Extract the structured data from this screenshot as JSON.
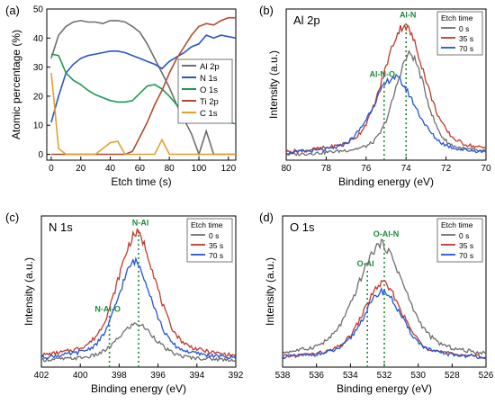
{
  "chart_data": [
    {
      "panel_label": "(a)",
      "type": "line",
      "xlabel": "Etch time (s)",
      "ylabel": "Atomic percentage (%)",
      "xlim": [
        -3,
        125
      ],
      "ylim": [
        -2,
        50
      ],
      "xticks": [
        0,
        20,
        40,
        60,
        80,
        100,
        120
      ],
      "yticks": [
        0,
        10,
        20,
        30,
        40,
        50
      ],
      "legend_position": "right-middle",
      "series": [
        {
          "name": "Al 2p",
          "color": "#6e6e6e",
          "x": [
            0,
            5,
            10,
            15,
            20,
            25,
            30,
            35,
            40,
            45,
            50,
            55,
            60,
            65,
            70,
            75,
            80,
            85,
            90,
            95,
            100,
            105,
            110,
            115,
            120,
            125
          ],
          "y": [
            33,
            41,
            44,
            45.5,
            46,
            45.5,
            45.5,
            45,
            46,
            46,
            45.5,
            44,
            42,
            38,
            33,
            28,
            23,
            17,
            12,
            7,
            0,
            8,
            0,
            0,
            0,
            0
          ]
        },
        {
          "name": "N 1s",
          "color": "#2a54c8",
          "x": [
            0,
            5,
            10,
            15,
            20,
            25,
            30,
            35,
            40,
            45,
            50,
            55,
            60,
            65,
            70,
            75,
            80,
            85,
            90,
            95,
            100,
            105,
            110,
            115,
            120,
            125
          ],
          "y": [
            11,
            20,
            28,
            31,
            33,
            34,
            34.5,
            35,
            35.5,
            35.5,
            35,
            34,
            33,
            32,
            31,
            29.5,
            32,
            33.5,
            35,
            37,
            38,
            41,
            40,
            41,
            40.5,
            40
          ]
        },
        {
          "name": "O 1s",
          "color": "#1a9a50",
          "x": [
            0,
            5,
            10,
            15,
            20,
            25,
            30,
            35,
            40,
            45,
            50,
            55,
            60,
            65,
            70,
            75,
            80,
            85,
            90,
            95,
            100,
            105,
            110,
            115,
            120,
            125
          ],
          "y": [
            34.5,
            34,
            28,
            25.5,
            24,
            22,
            20.5,
            19.5,
            18.5,
            18,
            18,
            18.5,
            21,
            23.5,
            24,
            22.5,
            20,
            17,
            16,
            15.5,
            14,
            13,
            12,
            11.5,
            11,
            10.5
          ]
        },
        {
          "name": "Ti 2p",
          "color": "#b44a2e",
          "x": [
            0,
            5,
            10,
            15,
            20,
            25,
            30,
            35,
            40,
            45,
            50,
            55,
            60,
            65,
            70,
            75,
            80,
            85,
            90,
            95,
            100,
            105,
            110,
            115,
            120,
            125
          ],
          "y": [
            0,
            0,
            0,
            0,
            0,
            0,
            0,
            0,
            0,
            0,
            0,
            1,
            6,
            11,
            17,
            22,
            28,
            33,
            37,
            41,
            44,
            45,
            44.5,
            46,
            47,
            47
          ]
        },
        {
          "name": "C 1s",
          "color": "#e0a030",
          "x": [
            0,
            2,
            5,
            10,
            15,
            20,
            30,
            40,
            45,
            50,
            60,
            70,
            75,
            80,
            90,
            100,
            110,
            120,
            125
          ],
          "y": [
            28,
            18,
            2,
            0,
            0,
            0,
            0,
            4,
            4.5,
            0,
            0,
            0,
            5,
            0,
            0,
            0,
            0,
            0,
            0
          ]
        }
      ]
    },
    {
      "panel_label": "(b)",
      "title": "Al 2p",
      "type": "line",
      "xlabel": "Binding energy (eV)",
      "ylabel": "Intensity (a.u.)",
      "x_reversed": true,
      "xlim": [
        80,
        70
      ],
      "ylim": [
        0,
        1.08
      ],
      "xticks": [
        80,
        78,
        76,
        74,
        72,
        70
      ],
      "legend_title": "Etch time",
      "legend_position": "top-right",
      "annotations": [
        {
          "text": "Al-N-O",
          "x": 75.1
        },
        {
          "text": "Al-N",
          "x": 74.0
        }
      ],
      "series": [
        {
          "name": "0 s",
          "color": "#6e6e6e",
          "center": 73.8,
          "width": 0.75,
          "amplitude": 0.75,
          "baseline": 0.03,
          "tail": 0.25
        },
        {
          "name": "35 s",
          "color": "#c0392b",
          "center": 74.1,
          "width": 1.0,
          "amplitude": 0.96,
          "baseline": 0.03,
          "tail": 0.25
        },
        {
          "name": "70 s",
          "color": "#2255d8",
          "center": 74.6,
          "width": 1.05,
          "amplitude": 0.58,
          "baseline": 0.03,
          "tail": 0.25
        }
      ]
    },
    {
      "panel_label": "(c)",
      "title": "N 1s",
      "type": "line",
      "xlabel": "Binding energy (eV)",
      "ylabel": "Intensity (a.u.)",
      "x_reversed": true,
      "xlim": [
        402,
        392
      ],
      "ylim": [
        0,
        1.08
      ],
      "xticks": [
        402,
        400,
        398,
        396,
        394,
        392
      ],
      "legend_title": "Etch time",
      "legend_position": "top-right",
      "annotations": [
        {
          "text": "N-Al-O",
          "x": 398.5
        },
        {
          "text": "N-Al",
          "x": 397.0
        }
      ],
      "series": [
        {
          "name": "0 s",
          "color": "#6e6e6e",
          "center": 397.1,
          "width": 0.9,
          "amplitude": 0.28,
          "baseline": 0.04,
          "tail": 0.3
        },
        {
          "name": "35 s",
          "color": "#c0392b",
          "center": 397.1,
          "width": 0.95,
          "amplitude": 0.95,
          "baseline": 0.04,
          "tail": 0.3
        },
        {
          "name": "70 s",
          "color": "#2255d8",
          "center": 397.2,
          "width": 0.85,
          "amplitude": 0.74,
          "baseline": 0.04,
          "tail": 0.3
        }
      ]
    },
    {
      "panel_label": "(d)",
      "title": "O 1s",
      "type": "line",
      "xlabel": "Binding energy (eV)",
      "ylabel": "Intensity (a.u.)",
      "x_reversed": true,
      "xlim": [
        538,
        526
      ],
      "ylim": [
        0,
        1.08
      ],
      "xticks": [
        538,
        536,
        534,
        532,
        530,
        528,
        526
      ],
      "legend_title": "Etch time",
      "legend_position": "top-right",
      "annotations": [
        {
          "text": "O-Al",
          "x": 533.0
        },
        {
          "text": "O-Al-N",
          "x": 532.0
        }
      ],
      "series": [
        {
          "name": "0 s",
          "color": "#6e6e6e",
          "center": 532.2,
          "width": 1.35,
          "amplitude": 0.86,
          "baseline": 0.05,
          "tail": 0.3
        },
        {
          "name": "35 s",
          "color": "#c0392b",
          "center": 532.1,
          "width": 1.1,
          "amplitude": 0.57,
          "baseline": 0.05,
          "tail": 0.3
        },
        {
          "name": "70 s",
          "color": "#2255d8",
          "center": 532.1,
          "width": 1.1,
          "amplitude": 0.51,
          "baseline": 0.05,
          "tail": 0.3
        }
      ]
    }
  ]
}
